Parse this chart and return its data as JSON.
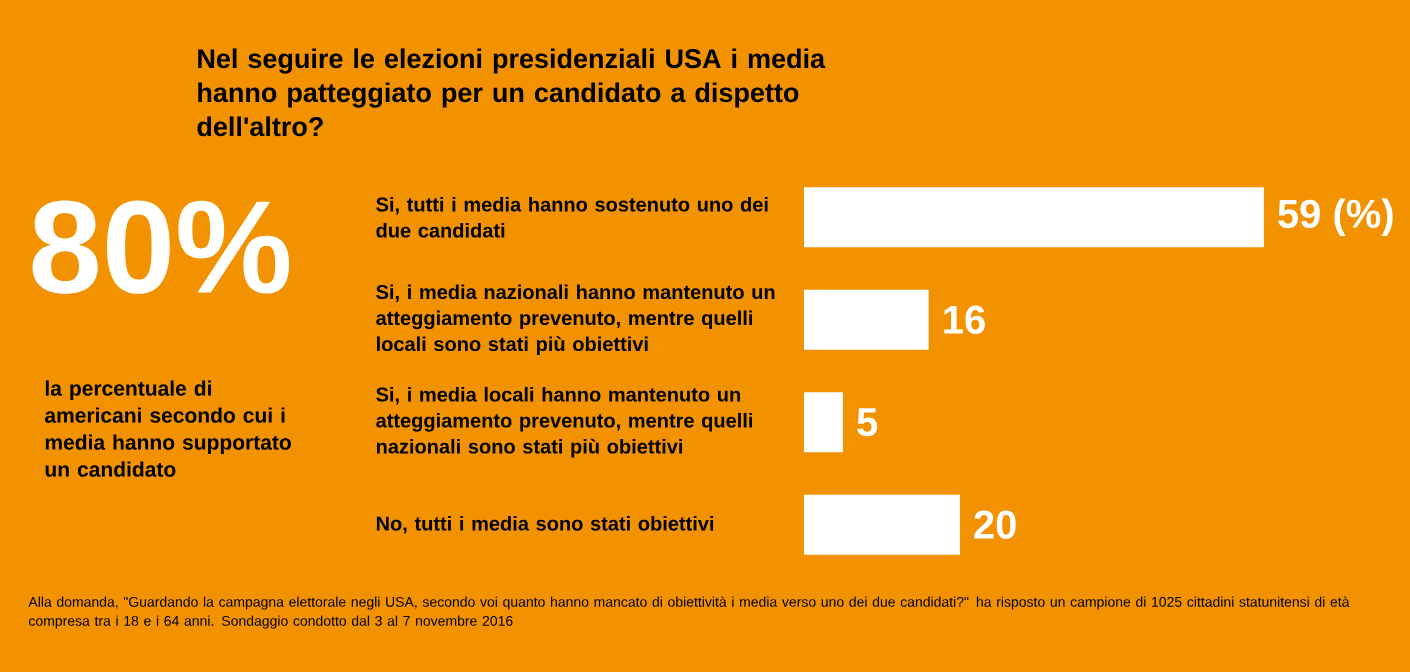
{
  "chart_data": {
    "type": "bar",
    "orientation": "horizontal",
    "title": "Nel seguire le elezioni presidenziali USA i media hanno patteggiato per un candidato a dispetto dell'altro?",
    "categories": [
      "Si, tutti i media hanno sostenuto uno dei due candidati",
      "Si, i media nazionali hanno mantenuto un atteggiamento prevenuto, mentre quelli locali sono stati più obiettivi",
      "Si, i media locali hanno mantenuto un atteggiamento prevenuto, mentre quelli nazionali sono stati più obiettivi",
      "No, tutti i media sono stati obiettivi"
    ],
    "values": [
      59,
      16,
      5,
      20
    ],
    "value_labels": [
      "59 (%)",
      "16",
      "5",
      "20"
    ],
    "color": "#ffffff",
    "annotations": [
      "80%",
      "la percentuale di americani secondo cui i media hanno supportato un candidato",
      "Alla domanda, \"Guardando la campagna elettorale negli USA, secondo voi quanto hanno mancato di obiettività i media verso uno dei due candidati?\" ha risposto un campione di 1025 cittadini statunitensi di età compresa tra i 18 e i 64 anni. Sondaggio condotto dal 3 al 7 novembre 2016"
    ]
  }
}
